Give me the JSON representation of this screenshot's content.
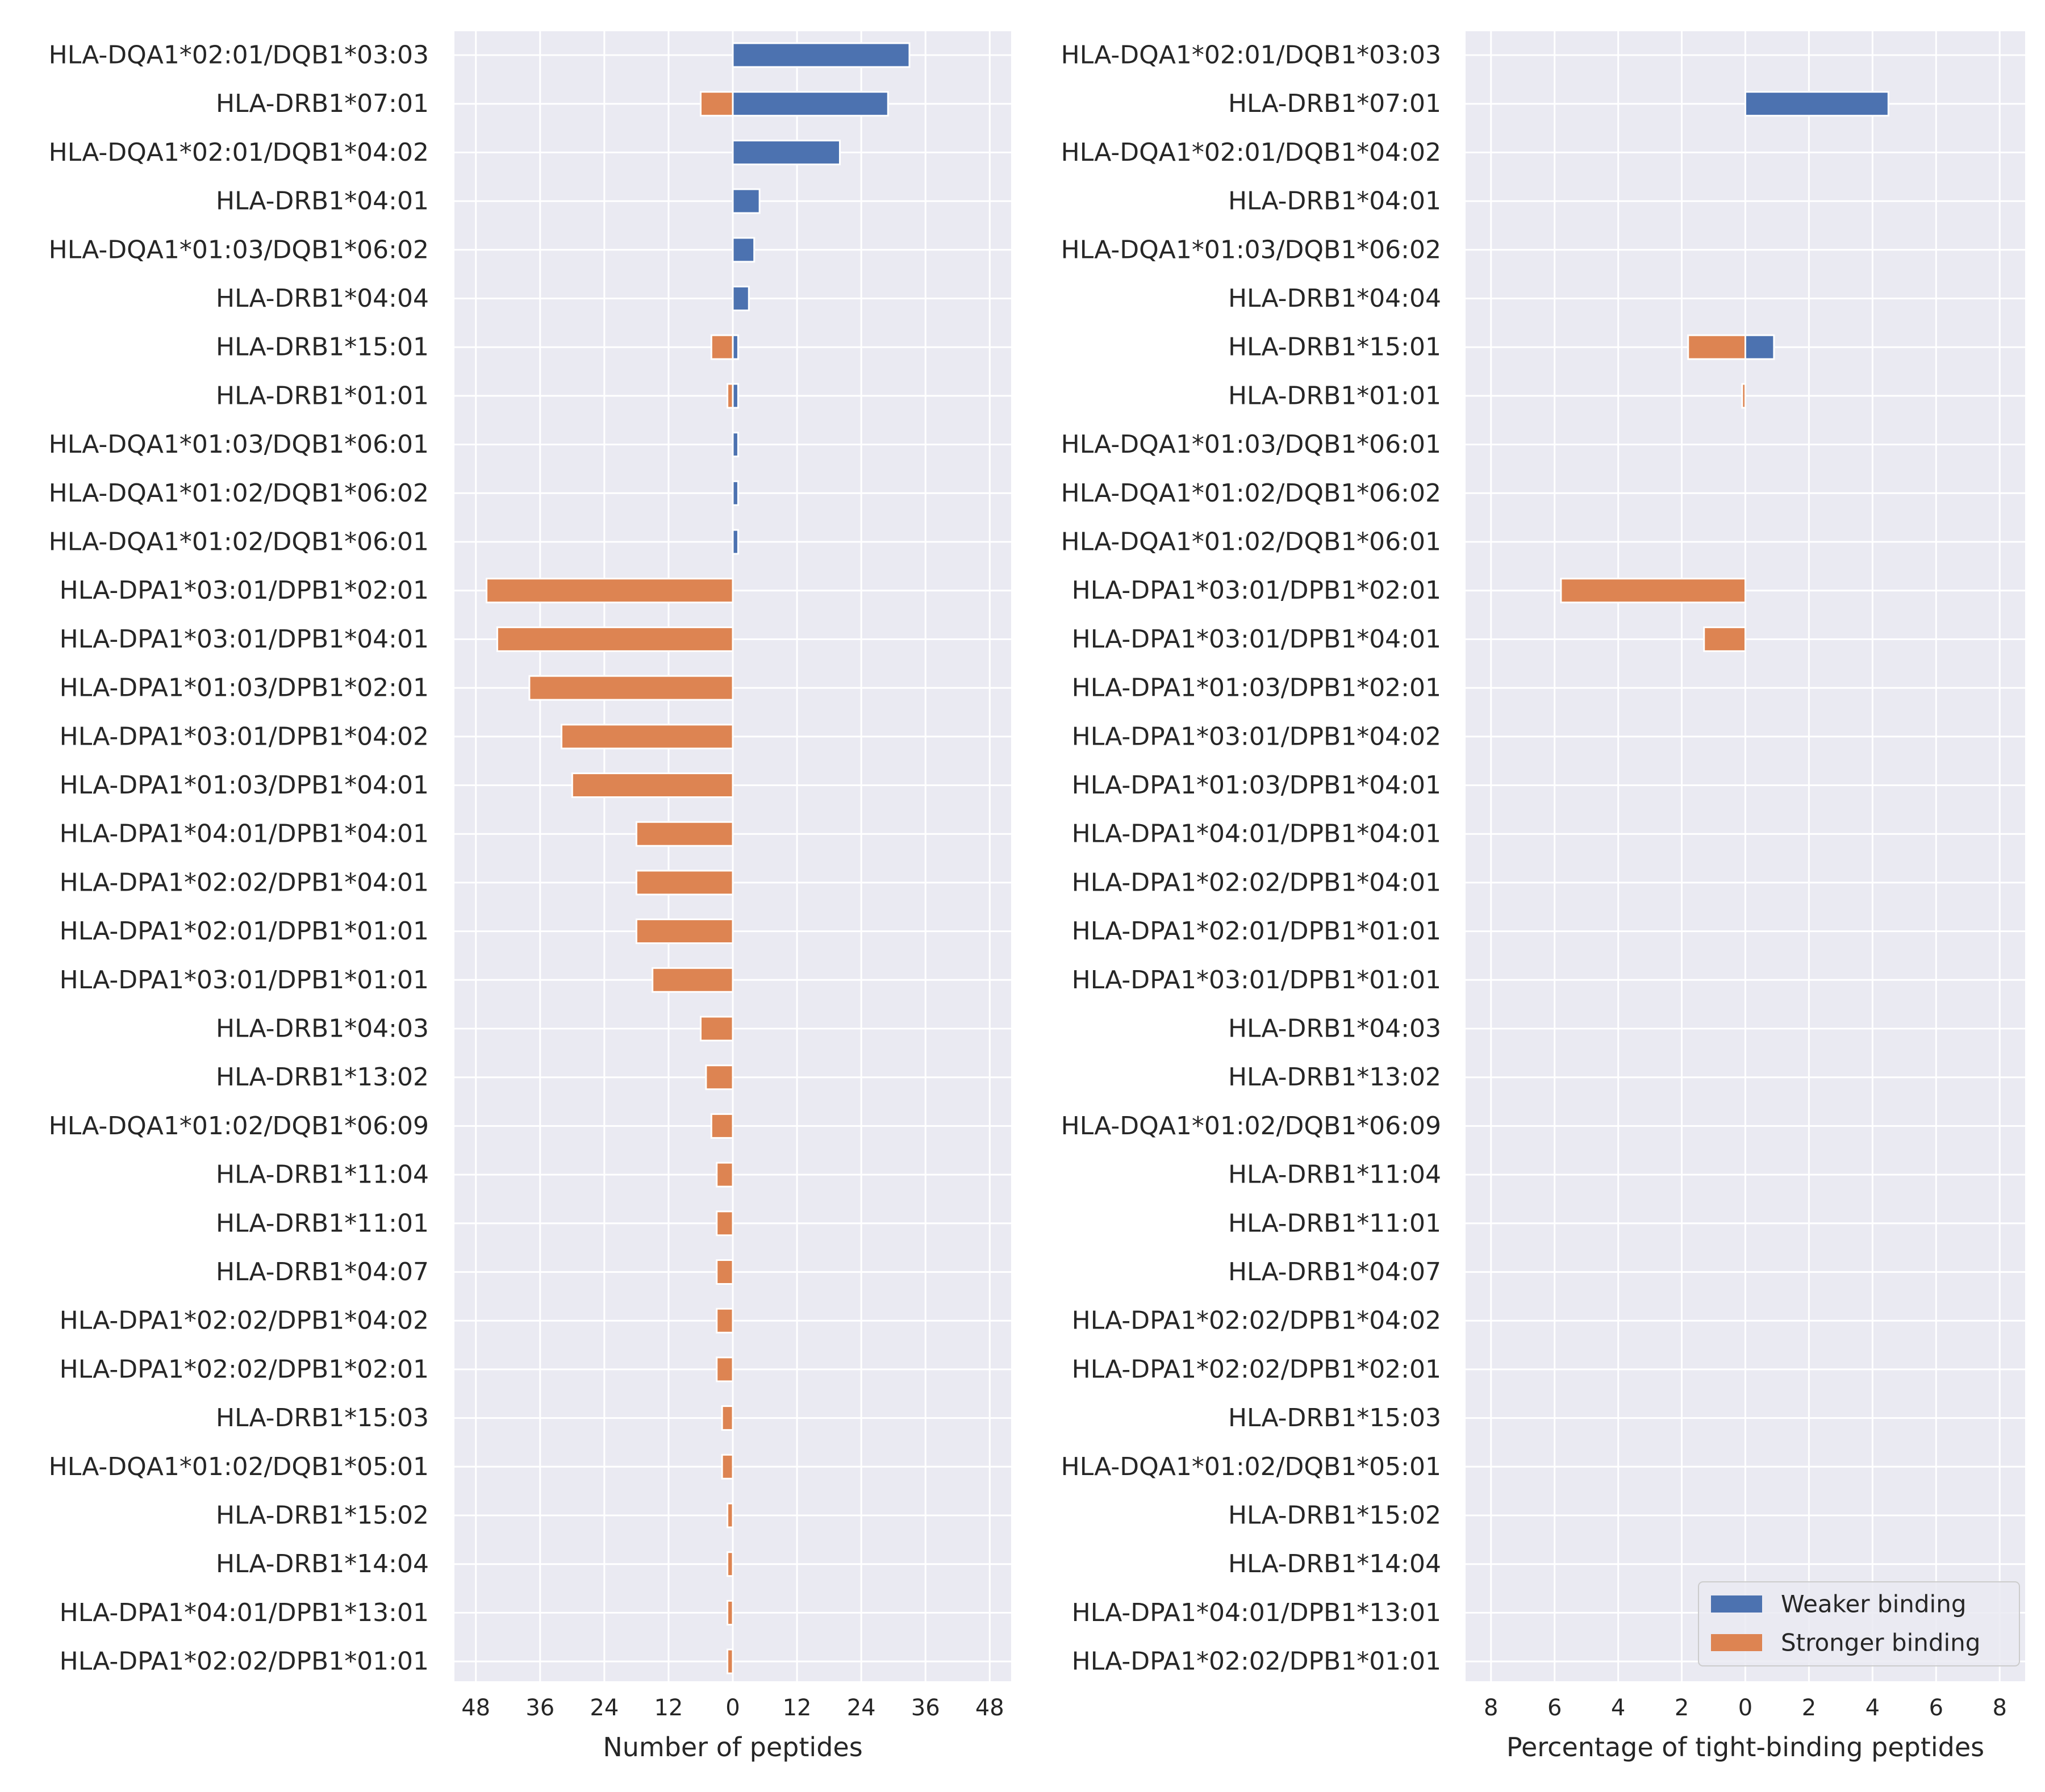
{
  "colors": {
    "weaker": "#4C72B0",
    "stronger": "#DD8452",
    "panel_bg": "#EAEAF2",
    "grid": "#FFFFFF",
    "text": "#262626"
  },
  "chart_data": [
    {
      "type": "bar",
      "orientation": "horizontal-diverging",
      "xlabel": "Number of peptides",
      "xlim": [
        -52,
        52
      ],
      "xticks": [
        -48,
        -36,
        -24,
        -12,
        0,
        12,
        24,
        36,
        48
      ],
      "xtick_labels": [
        "48",
        "36",
        "24",
        "12",
        "0",
        "12",
        "24",
        "36",
        "48"
      ],
      "grid": true,
      "categories": [
        "HLA-DQA1*02:01/DQB1*03:03",
        "HLA-DRB1*07:01",
        "HLA-DQA1*02:01/DQB1*04:02",
        "HLA-DRB1*04:01",
        "HLA-DQA1*01:03/DQB1*06:02",
        "HLA-DRB1*04:04",
        "HLA-DRB1*15:01",
        "HLA-DRB1*01:01",
        "HLA-DQA1*01:03/DQB1*06:01",
        "HLA-DQA1*01:02/DQB1*06:02",
        "HLA-DQA1*01:02/DQB1*06:01",
        "HLA-DPA1*03:01/DPB1*02:01",
        "HLA-DPA1*03:01/DPB1*04:01",
        "HLA-DPA1*01:03/DPB1*02:01",
        "HLA-DPA1*03:01/DPB1*04:02",
        "HLA-DPA1*01:03/DPB1*04:01",
        "HLA-DPA1*04:01/DPB1*04:01",
        "HLA-DPA1*02:02/DPB1*04:01",
        "HLA-DPA1*02:01/DPB1*01:01",
        "HLA-DPA1*03:01/DPB1*01:01",
        "HLA-DRB1*04:03",
        "HLA-DRB1*13:02",
        "HLA-DQA1*01:02/DQB1*06:09",
        "HLA-DRB1*11:04",
        "HLA-DRB1*11:01",
        "HLA-DRB1*04:07",
        "HLA-DPA1*02:02/DPB1*04:02",
        "HLA-DPA1*02:02/DPB1*02:01",
        "HLA-DRB1*15:03",
        "HLA-DQA1*01:02/DQB1*05:01",
        "HLA-DRB1*15:02",
        "HLA-DRB1*14:04",
        "HLA-DPA1*04:01/DPB1*13:01",
        "HLA-DPA1*02:02/DPB1*01:01"
      ],
      "series": [
        {
          "name": "Weaker binding",
          "color": "#4C72B0",
          "values": [
            33,
            29,
            20,
            5,
            4,
            3,
            1,
            1,
            1,
            1,
            1,
            0,
            0,
            0,
            0,
            0,
            0,
            0,
            0,
            0,
            0,
            0,
            0,
            0,
            0,
            0,
            0,
            0,
            0,
            0,
            0,
            0,
            0,
            0
          ]
        },
        {
          "name": "Stronger binding",
          "color": "#DD8452",
          "values": [
            0,
            6,
            0,
            0,
            0,
            0,
            4,
            1,
            0,
            0,
            0,
            46,
            44,
            38,
            32,
            30,
            18,
            18,
            18,
            15,
            6,
            5,
            4,
            3,
            3,
            3,
            3,
            3,
            2,
            2,
            1,
            1,
            1,
            1
          ]
        }
      ]
    },
    {
      "type": "bar",
      "orientation": "horizontal-diverging",
      "xlabel": "Percentage of tight-binding peptides",
      "xlim": [
        -8.8,
        8.8
      ],
      "xticks": [
        -8,
        -6,
        -4,
        -2,
        0,
        2,
        4,
        6,
        8
      ],
      "xtick_labels": [
        "8",
        "6",
        "4",
        "2",
        "0",
        "2",
        "4",
        "6",
        "8"
      ],
      "grid": true,
      "legend_position": "lower-right",
      "categories": [
        "HLA-DQA1*02:01/DQB1*03:03",
        "HLA-DRB1*07:01",
        "HLA-DQA1*02:01/DQB1*04:02",
        "HLA-DRB1*04:01",
        "HLA-DQA1*01:03/DQB1*06:02",
        "HLA-DRB1*04:04",
        "HLA-DRB1*15:01",
        "HLA-DRB1*01:01",
        "HLA-DQA1*01:03/DQB1*06:01",
        "HLA-DQA1*01:02/DQB1*06:02",
        "HLA-DQA1*01:02/DQB1*06:01",
        "HLA-DPA1*03:01/DPB1*02:01",
        "HLA-DPA1*03:01/DPB1*04:01",
        "HLA-DPA1*01:03/DPB1*02:01",
        "HLA-DPA1*03:01/DPB1*04:02",
        "HLA-DPA1*01:03/DPB1*04:01",
        "HLA-DPA1*04:01/DPB1*04:01",
        "HLA-DPA1*02:02/DPB1*04:01",
        "HLA-DPA1*02:01/DPB1*01:01",
        "HLA-DPA1*03:01/DPB1*01:01",
        "HLA-DRB1*04:03",
        "HLA-DRB1*13:02",
        "HLA-DQA1*01:02/DQB1*06:09",
        "HLA-DRB1*11:04",
        "HLA-DRB1*11:01",
        "HLA-DRB1*04:07",
        "HLA-DPA1*02:02/DPB1*04:02",
        "HLA-DPA1*02:02/DPB1*02:01",
        "HLA-DRB1*15:03",
        "HLA-DQA1*01:02/DQB1*05:01",
        "HLA-DRB1*15:02",
        "HLA-DRB1*14:04",
        "HLA-DPA1*04:01/DPB1*13:01",
        "HLA-DPA1*02:02/DPB1*01:01"
      ],
      "series": [
        {
          "name": "Weaker binding",
          "color": "#4C72B0",
          "values": [
            0,
            4.5,
            0,
            0,
            0,
            0,
            0.9,
            0,
            0,
            0,
            0,
            0,
            0,
            0,
            0,
            0,
            0,
            0,
            0,
            0,
            0,
            0,
            0,
            0,
            0,
            0,
            0,
            0,
            0,
            0,
            0,
            0,
            0,
            0
          ]
        },
        {
          "name": "Stronger binding",
          "color": "#DD8452",
          "values": [
            0,
            0,
            0,
            0,
            0,
            0,
            1.8,
            0.1,
            0,
            0,
            0,
            5.8,
            1.3,
            0,
            0,
            0,
            0,
            0,
            0,
            0,
            0,
            0,
            0,
            0,
            0,
            0,
            0,
            0,
            0,
            0,
            0,
            0,
            0,
            0
          ]
        }
      ]
    }
  ]
}
